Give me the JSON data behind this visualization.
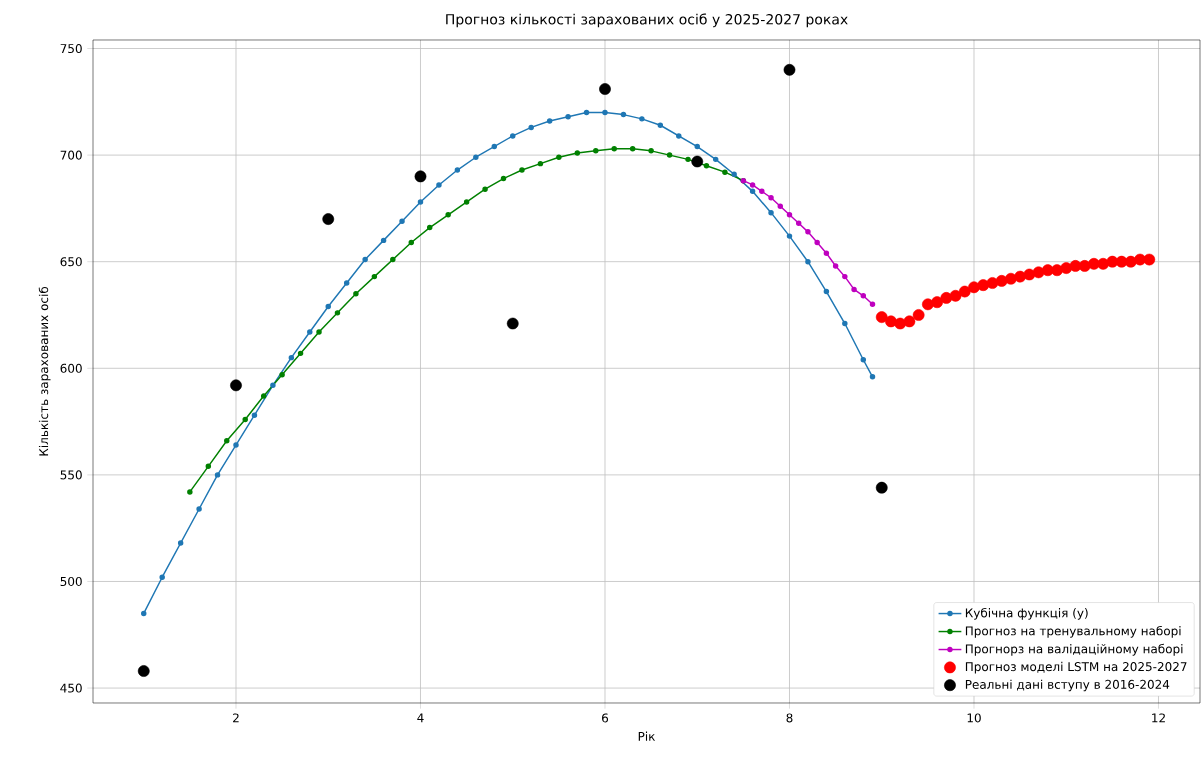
{
  "chart_data": {
    "type": "line",
    "title": "Прогноз кількості зарахованих осіб у 2025-2027 роках",
    "xlabel": "Рік",
    "ylabel": "Кількість зарахованих осіб",
    "xlim": [
      0.45,
      12.45
    ],
    "ylim": [
      443,
      754
    ],
    "xticks": [
      2,
      4,
      6,
      8,
      10,
      12
    ],
    "yticks": [
      450,
      500,
      550,
      600,
      650,
      700,
      750
    ],
    "grid": true,
    "legend": "bottom right",
    "marker": "circle",
    "series": [
      {
        "name": "Кубічна функція (y)",
        "color": "#1f77b4",
        "x": [
          1.0,
          1.2,
          1.4,
          1.6,
          1.8,
          2.0,
          2.2,
          2.4,
          2.6,
          2.8,
          3.0,
          3.2,
          3.4,
          3.6,
          3.8,
          4.0,
          4.2,
          4.4,
          4.6,
          4.8,
          5.0,
          5.2,
          5.4,
          5.6,
          5.8,
          6.0,
          6.2,
          6.4,
          6.6,
          6.8,
          7.0,
          7.2,
          7.4,
          7.6,
          7.8,
          8.0,
          8.2,
          8.4,
          8.6,
          8.8,
          8.9
        ],
        "values": [
          485,
          502,
          518,
          534,
          550,
          564,
          578,
          592,
          605,
          617,
          629,
          640,
          651,
          660,
          669,
          678,
          686,
          693,
          699,
          704,
          709,
          713,
          716,
          718,
          720,
          720,
          719,
          717,
          714,
          709,
          704,
          698,
          691,
          683,
          673,
          662,
          650,
          636,
          621,
          604,
          596
        ]
      },
      {
        "name": "Прогноз на тренувальному наборі",
        "color": "#008000",
        "x": [
          1.5,
          1.7,
          1.9,
          2.1,
          2.3,
          2.5,
          2.7,
          2.9,
          3.1,
          3.3,
          3.5,
          3.7,
          3.9,
          4.1,
          4.3,
          4.5,
          4.7,
          4.9,
          5.1,
          5.3,
          5.5,
          5.7,
          5.9,
          6.1,
          6.3,
          6.5,
          6.7,
          6.9,
          7.1,
          7.3,
          7.5
        ],
        "values": [
          542,
          554,
          566,
          576,
          587,
          597,
          607,
          617,
          626,
          635,
          643,
          651,
          659,
          666,
          672,
          678,
          684,
          689,
          693,
          696,
          699,
          701,
          702,
          703,
          703,
          702,
          700,
          698,
          695,
          692,
          688
        ]
      },
      {
        "name": "Прогнорз на валідаційному наборі",
        "color": "#bf00bf",
        "x": [
          7.5,
          7.6,
          7.7,
          7.8,
          7.9,
          8.0,
          8.1,
          8.2,
          8.3,
          8.4,
          8.5,
          8.6,
          8.7,
          8.8,
          8.9
        ],
        "values": [
          688,
          686,
          683,
          680,
          676,
          672,
          668,
          664,
          659,
          654,
          648,
          643,
          637,
          634,
          630
        ]
      },
      {
        "name": "Прогноз моделі LSTM на 2025-2027",
        "type": "scatter",
        "color": "#ff0000",
        "x": [
          9.0,
          9.1,
          9.2,
          9.3,
          9.4,
          9.5,
          9.6,
          9.7,
          9.8,
          9.9,
          10.0,
          10.1,
          10.2,
          10.3,
          10.4,
          10.5,
          10.6,
          10.7,
          10.8,
          10.9,
          11.0,
          11.1,
          11.2,
          11.3,
          11.4,
          11.5,
          11.6,
          11.7,
          11.8,
          11.9
        ],
        "values": [
          624,
          622,
          621,
          622,
          625,
          630,
          631,
          633,
          634,
          636,
          638,
          639,
          640,
          641,
          642,
          643,
          644,
          645,
          646,
          646,
          647,
          648,
          648,
          649,
          649,
          650,
          650,
          650,
          651,
          651
        ]
      },
      {
        "name": "Реальні дані вступу в 2016-2024",
        "type": "scatter",
        "color": "#000000",
        "x": [
          1,
          2,
          3,
          4,
          5,
          6,
          7,
          8,
          9
        ],
        "values": [
          458,
          592,
          670,
          690,
          621,
          731,
          697,
          740,
          544
        ]
      }
    ]
  }
}
